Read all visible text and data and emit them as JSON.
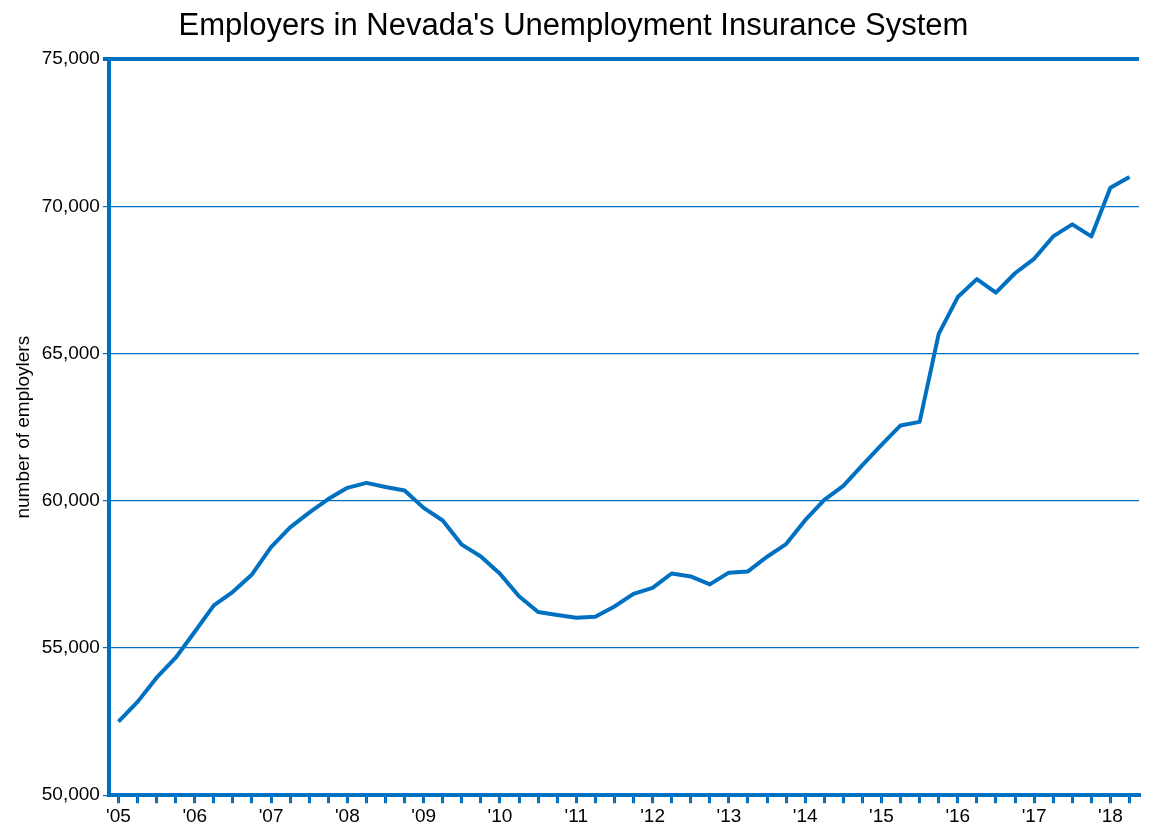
{
  "chart_data": {
    "type": "line",
    "title": "Employers in Nevada's Unemployment Insurance System",
    "ylabel": "number of employlers",
    "categories": [
      "'05",
      null,
      null,
      null,
      "'06",
      null,
      null,
      null,
      "'07",
      null,
      null,
      null,
      "'08",
      null,
      null,
      null,
      "'09",
      null,
      null,
      null,
      "'10",
      null,
      null,
      null,
      "'11",
      null,
      null,
      null,
      "'12",
      null,
      null,
      null,
      "'13",
      null,
      null,
      null,
      "'14",
      null,
      null,
      null,
      "'15",
      null,
      null,
      null,
      "'16",
      null,
      null,
      null,
      "'17",
      null,
      null,
      null,
      "'18",
      null
    ],
    "series": [
      {
        "color": "#0070c0",
        "values": [
          52500,
          53170,
          53990,
          54670,
          55550,
          56450,
          56910,
          57500,
          58430,
          59100,
          59600,
          60060,
          60440,
          60610,
          60470,
          60350,
          59760,
          59330,
          58510,
          58110,
          57520,
          56760,
          56220,
          56120,
          56030,
          56060,
          56410,
          56840,
          57040,
          57530,
          57430,
          57160,
          57560,
          57600,
          58100,
          58530,
          59340,
          60030,
          60510,
          61210,
          61900,
          62560,
          62680,
          65670,
          66920,
          67530,
          67070,
          67730,
          68220,
          68980,
          69390,
          68980,
          70630,
          71000
        ]
      }
    ],
    "ylim": [
      50000,
      75000
    ],
    "yticks": [
      {
        "value": 50000,
        "label": "50,000"
      },
      {
        "value": 55000,
        "label": "55,000"
      },
      {
        "value": 60000,
        "label": "60,000"
      },
      {
        "value": 65000,
        "label": "65,000"
      },
      {
        "value": 70000,
        "label": "70,000"
      },
      {
        "value": 75000,
        "label": "75,000"
      }
    ],
    "grid": "y",
    "legend": false,
    "marker": "none",
    "line_style": "solid"
  }
}
